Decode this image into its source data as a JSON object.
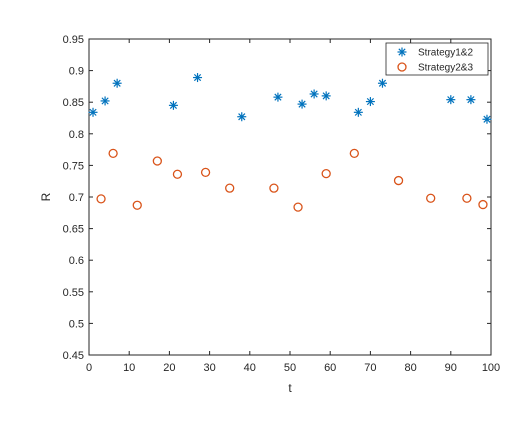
{
  "chart_data": {
    "type": "scatter",
    "xlabel": "t",
    "ylabel": "R",
    "xlim": [
      0,
      100
    ],
    "ylim": [
      0.45,
      0.95
    ],
    "xticks": [
      0,
      10,
      20,
      30,
      40,
      50,
      60,
      70,
      80,
      90,
      100
    ],
    "yticks": [
      0.45,
      0.5,
      0.55,
      0.6,
      0.65,
      0.7,
      0.75,
      0.8,
      0.85,
      0.9,
      0.95
    ],
    "ytick_labels": [
      "0.45",
      "0.5",
      "0.55",
      "0.6",
      "0.65",
      "0.7",
      "0.75",
      "0.8",
      "0.85",
      "0.9",
      "0.95"
    ],
    "grid": false,
    "legend_position": "top-right",
    "series": [
      {
        "name": "Strategy1&2",
        "marker": "asterisk",
        "color": "#0072BD",
        "points": [
          [
            1,
            0.834
          ],
          [
            4,
            0.852
          ],
          [
            7,
            0.88
          ],
          [
            21,
            0.845
          ],
          [
            27,
            0.889
          ],
          [
            38,
            0.827
          ],
          [
            47,
            0.858
          ],
          [
            53,
            0.847
          ],
          [
            56,
            0.863
          ],
          [
            59,
            0.86
          ],
          [
            67,
            0.834
          ],
          [
            70,
            0.851
          ],
          [
            73,
            0.88
          ],
          [
            90,
            0.854
          ],
          [
            95,
            0.854
          ],
          [
            99,
            0.823
          ]
        ]
      },
      {
        "name": "Strategy2&3",
        "marker": "circle",
        "color": "#D95319",
        "points": [
          [
            3,
            0.697
          ],
          [
            6,
            0.769
          ],
          [
            12,
            0.687
          ],
          [
            17,
            0.757
          ],
          [
            22,
            0.736
          ],
          [
            29,
            0.739
          ],
          [
            35,
            0.714
          ],
          [
            46,
            0.714
          ],
          [
            52,
            0.684
          ],
          [
            59,
            0.737
          ],
          [
            66,
            0.769
          ],
          [
            77,
            0.726
          ],
          [
            85,
            0.698
          ],
          [
            94,
            0.698
          ],
          [
            98,
            0.688
          ]
        ]
      }
    ]
  }
}
